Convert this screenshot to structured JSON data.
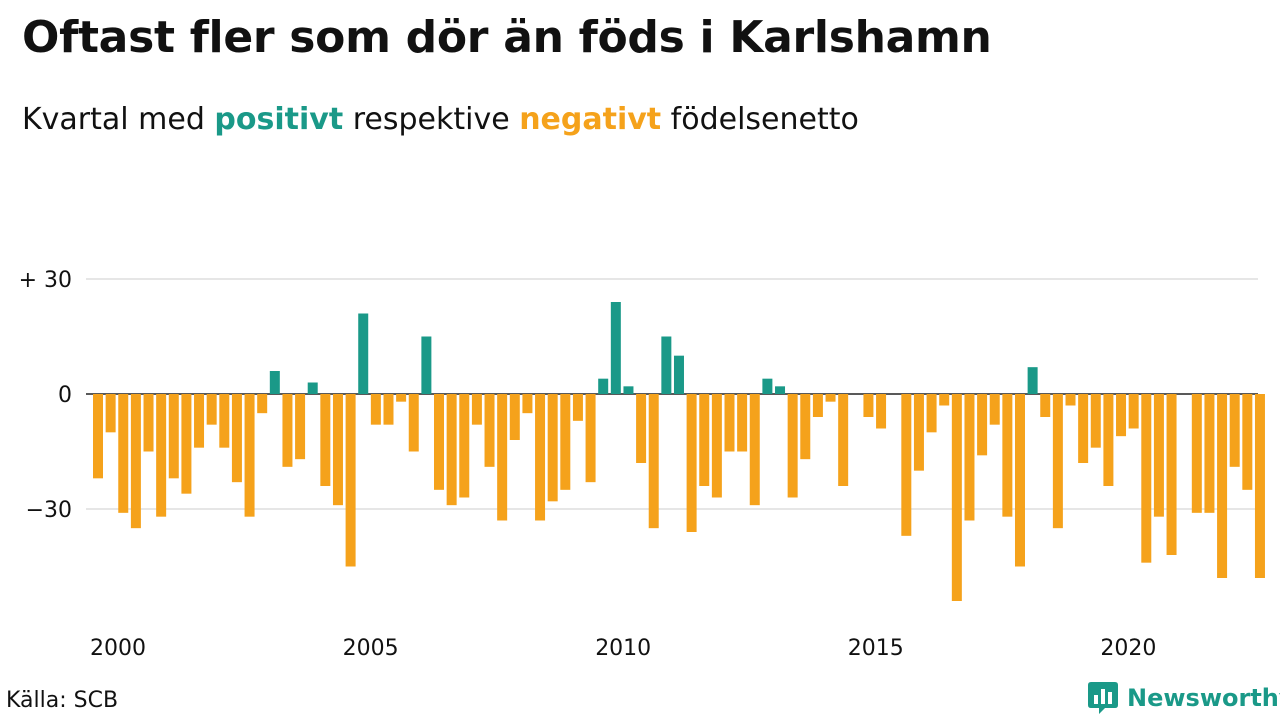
{
  "title": "Oftast fler som dör än föds i Karlshamn",
  "subtitle": {
    "prefix": "Kvartal med ",
    "positive_word": "positivt",
    "middle": " respektive ",
    "negative_word": "negativt",
    "suffix": " födelsenetto"
  },
  "source": "Källa: SCB",
  "brand": {
    "name": "Newsworthy",
    "icon": "newsworthy-logo-icon"
  },
  "colors": {
    "positive": "#1a9988",
    "negative": "#f5a21b",
    "grid": "#dddddd",
    "text": "#111111"
  },
  "chart_data": {
    "type": "bar",
    "title": "Oftast fler som dör än föds i Karlshamn",
    "subtitle": "Kvartal med positivt respektive negativt födelsenetto",
    "xlabel": "",
    "ylabel": "",
    "ylim": [
      -55,
      30
    ],
    "yticks": [
      30,
      0,
      -30
    ],
    "ytick_labels": [
      "+ 30",
      "0",
      "−30"
    ],
    "xticks": [
      "2000",
      "2005",
      "2010",
      "2015",
      "2020"
    ],
    "grid": true,
    "categories": [
      "2000 K1",
      "2000 K2",
      "2000 K3",
      "2000 K4",
      "2001 K1",
      "2001 K2",
      "2001 K3",
      "2001 K4",
      "2002 K1",
      "2002 K2",
      "2002 K3",
      "2002 K4",
      "2003 K1",
      "2003 K2",
      "2003 K3",
      "2003 K4",
      "2004 K1",
      "2004 K2",
      "2004 K3",
      "2004 K4",
      "2005 K1",
      "2005 K2",
      "2005 K3",
      "2005 K4",
      "2006 K1",
      "2006 K2",
      "2006 K3",
      "2006 K4",
      "2007 K1",
      "2007 K2",
      "2007 K3",
      "2007 K4",
      "2008 K1",
      "2008 K2",
      "2008 K3",
      "2008 K4",
      "2009 K1",
      "2009 K2",
      "2009 K3",
      "2009 K4",
      "2010 K1",
      "2010 K2",
      "2010 K3",
      "2010 K4",
      "2011 K1",
      "2011 K2",
      "2011 K3",
      "2011 K4",
      "2012 K1",
      "2012 K2",
      "2012 K3",
      "2012 K4",
      "2013 K1",
      "2013 K2",
      "2013 K3",
      "2013 K4",
      "2014 K1",
      "2014 K2",
      "2014 K3",
      "2014 K4",
      "2015 K1",
      "2015 K2",
      "2015 K3",
      "2015 K4",
      "2016 K1",
      "2016 K2",
      "2016 K3",
      "2016 K4",
      "2017 K1",
      "2017 K2",
      "2017 K3",
      "2017 K4",
      "2018 K1",
      "2018 K2",
      "2018 K3",
      "2018 K4",
      "2019 K1",
      "2019 K2",
      "2019 K3",
      "2019 K4",
      "2020 K1",
      "2020 K2",
      "2020 K3",
      "2020 K4",
      "2021 K1",
      "2021 K2",
      "2021 K3",
      "2021 K4",
      "2022 K1",
      "2022 K2",
      "2022 K3",
      "2022 K4",
      "2023 K1"
    ],
    "values": [
      -22,
      -10,
      -31,
      -35,
      -15,
      -32,
      -22,
      -26,
      -14,
      -8,
      -14,
      -23,
      -32,
      -5,
      6,
      -19,
      -17,
      3,
      -24,
      -29,
      -45,
      21,
      -8,
      -8,
      -2,
      -15,
      15,
      -25,
      -29,
      -27,
      -8,
      -19,
      -33,
      -12,
      -5,
      -33,
      -28,
      -25,
      -7,
      -23,
      4,
      24,
      2,
      -18,
      -35,
      15,
      10,
      -36,
      -24,
      -27,
      -15,
      -15,
      -29,
      4,
      2,
      -27,
      -17,
      -6,
      -2,
      -24,
      0,
      -6,
      -9,
      0,
      -37,
      -20,
      -10,
      -3,
      -54,
      -33,
      -16,
      -8,
      -32,
      -45,
      7,
      -6,
      -35,
      -3,
      -18,
      -14,
      -24,
      -11,
      -9,
      -44,
      -32,
      -42,
      0,
      -31,
      -31,
      -48,
      -19,
      -25,
      -48
    ]
  }
}
